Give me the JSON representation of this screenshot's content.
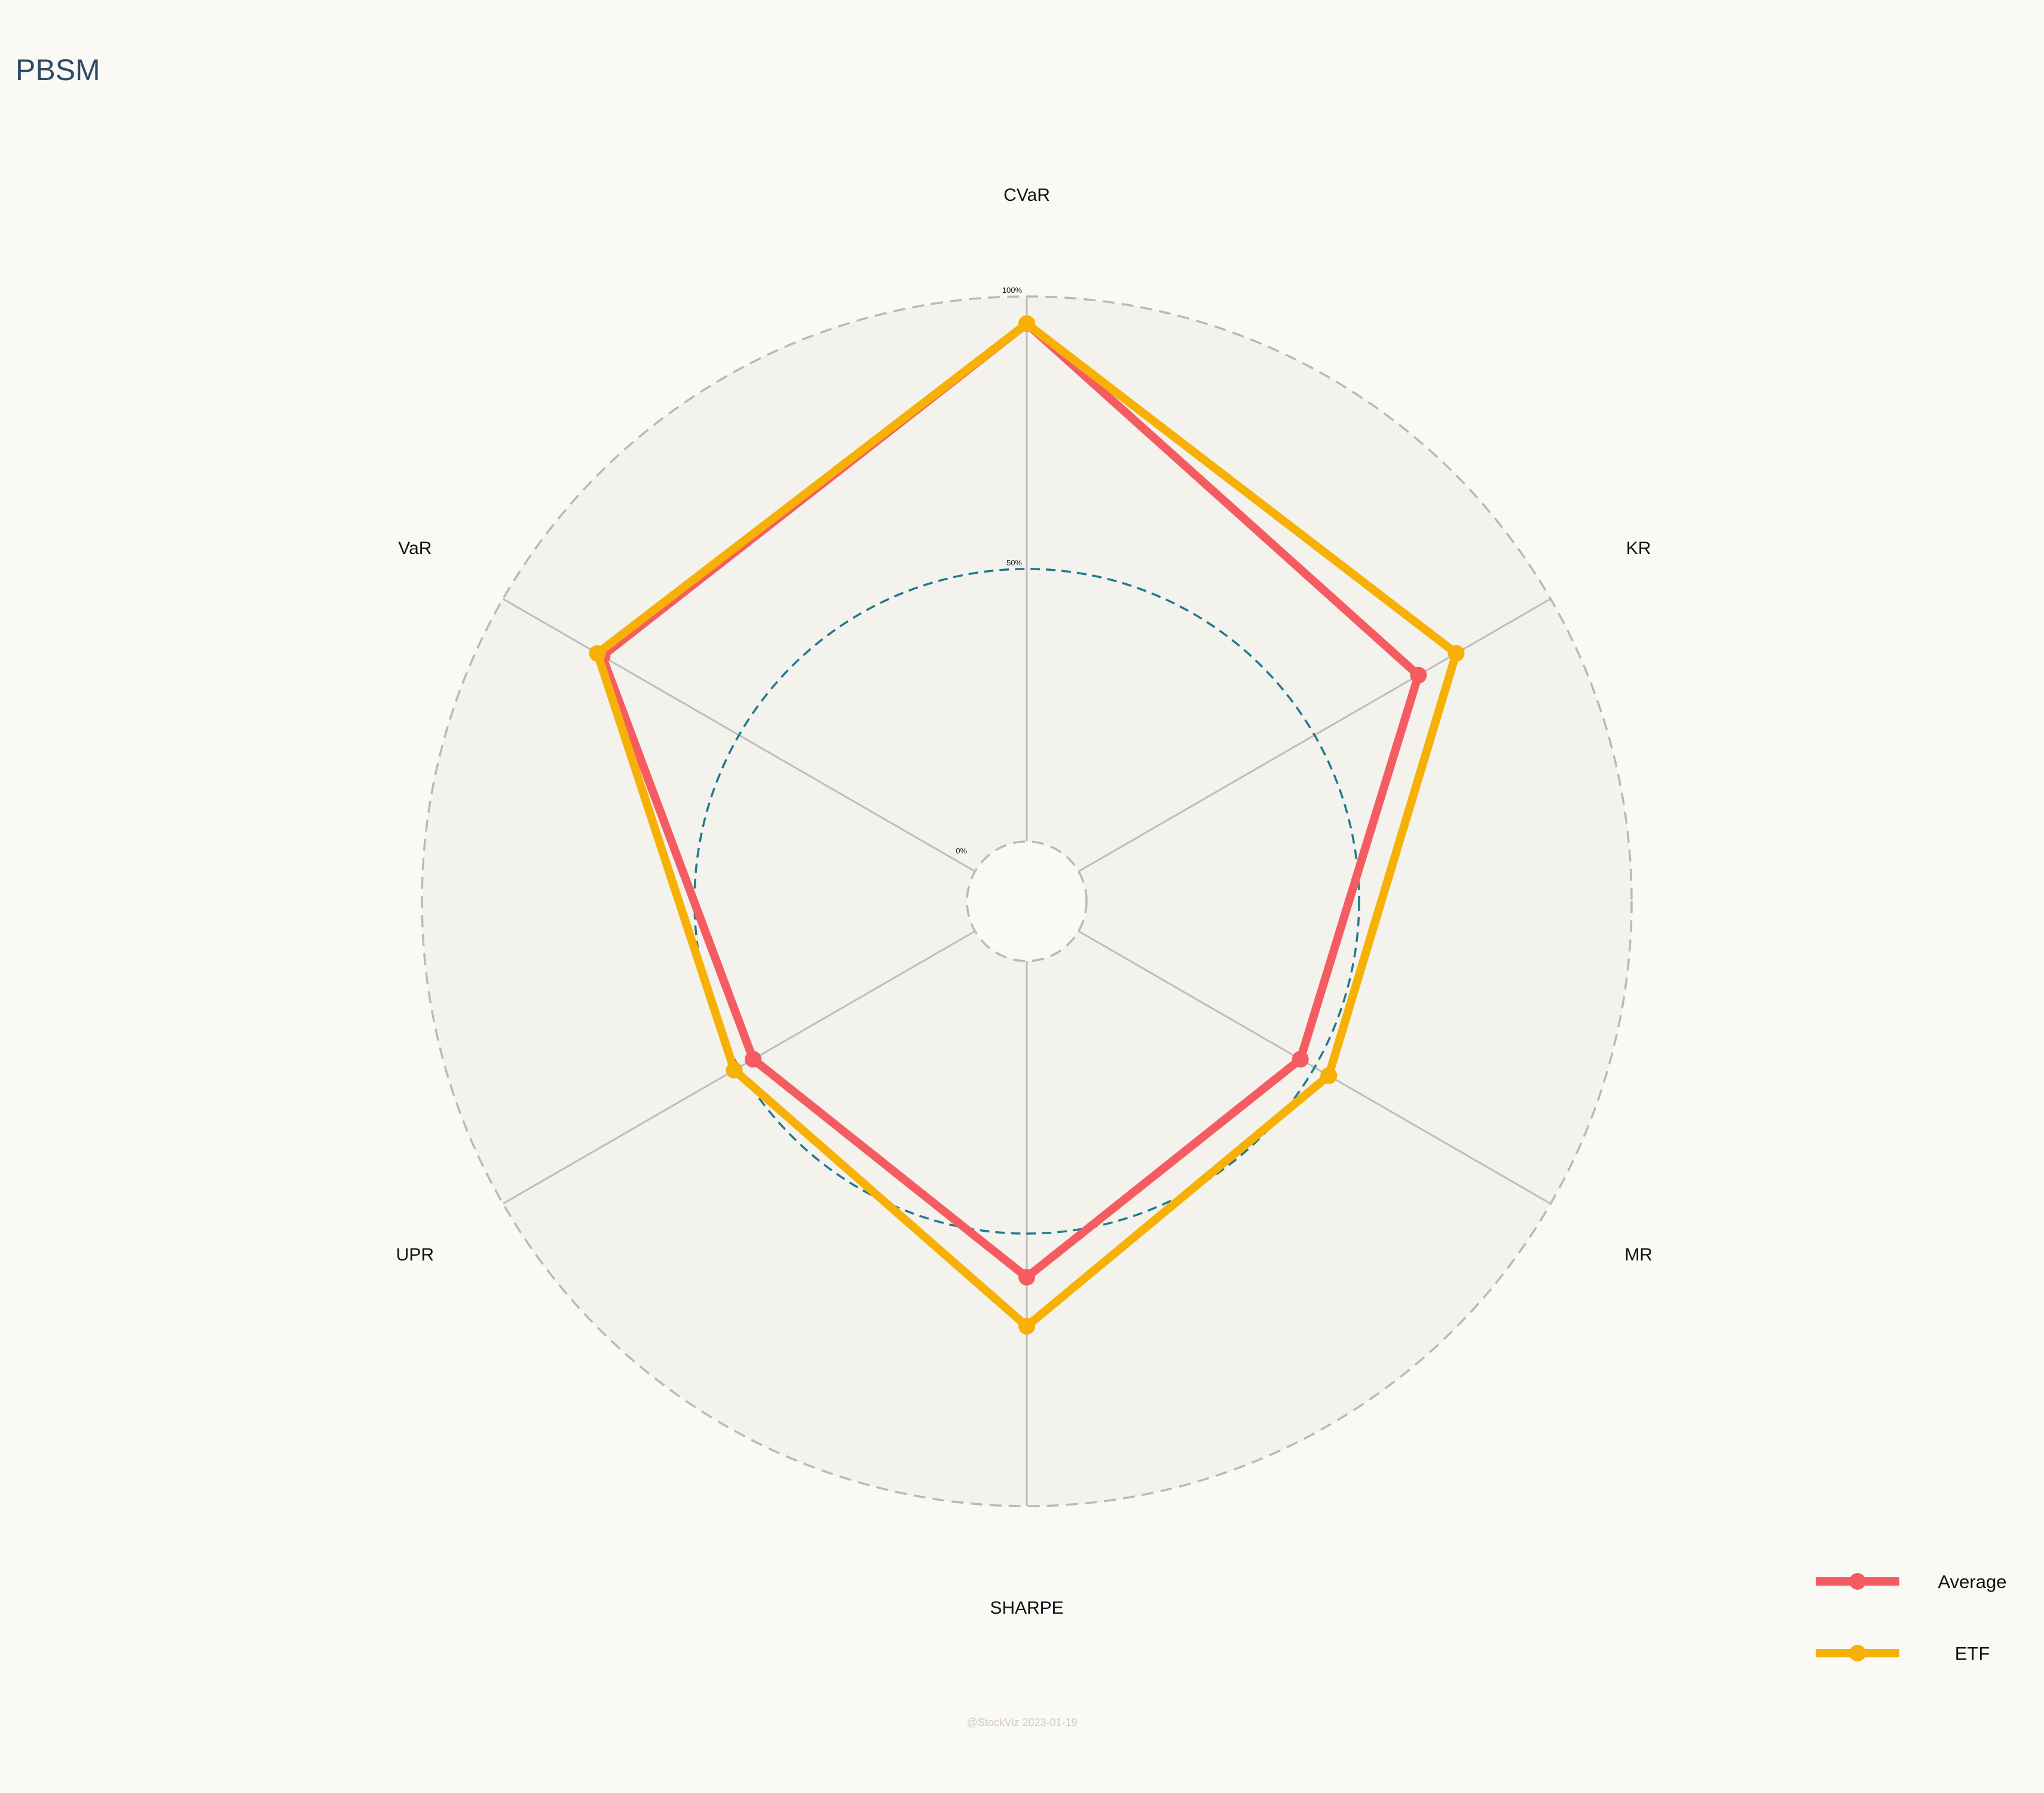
{
  "chart_data": {
    "type": "radar",
    "title": "PBSM",
    "axes": [
      "CVaR",
      "KR",
      "MR",
      "SHARPE",
      "UPR",
      "VaR"
    ],
    "rlim": [
      0,
      100
    ],
    "ticks": [
      {
        "value": 0,
        "label": "0%"
      },
      {
        "value": 50,
        "label": "50%"
      },
      {
        "value": 100,
        "label": "100%"
      }
    ],
    "series": [
      {
        "name": "Average",
        "color": "#f55c62",
        "values": [
          95,
          72,
          47,
          58,
          47,
          79
        ]
      },
      {
        "name": "ETF",
        "color": "#f7b106",
        "values": [
          95,
          80,
          53,
          67,
          51,
          80
        ]
      }
    ],
    "legend_position": "bottom-right",
    "grid": true
  },
  "watermark": "@StockViz 2023-01-19"
}
